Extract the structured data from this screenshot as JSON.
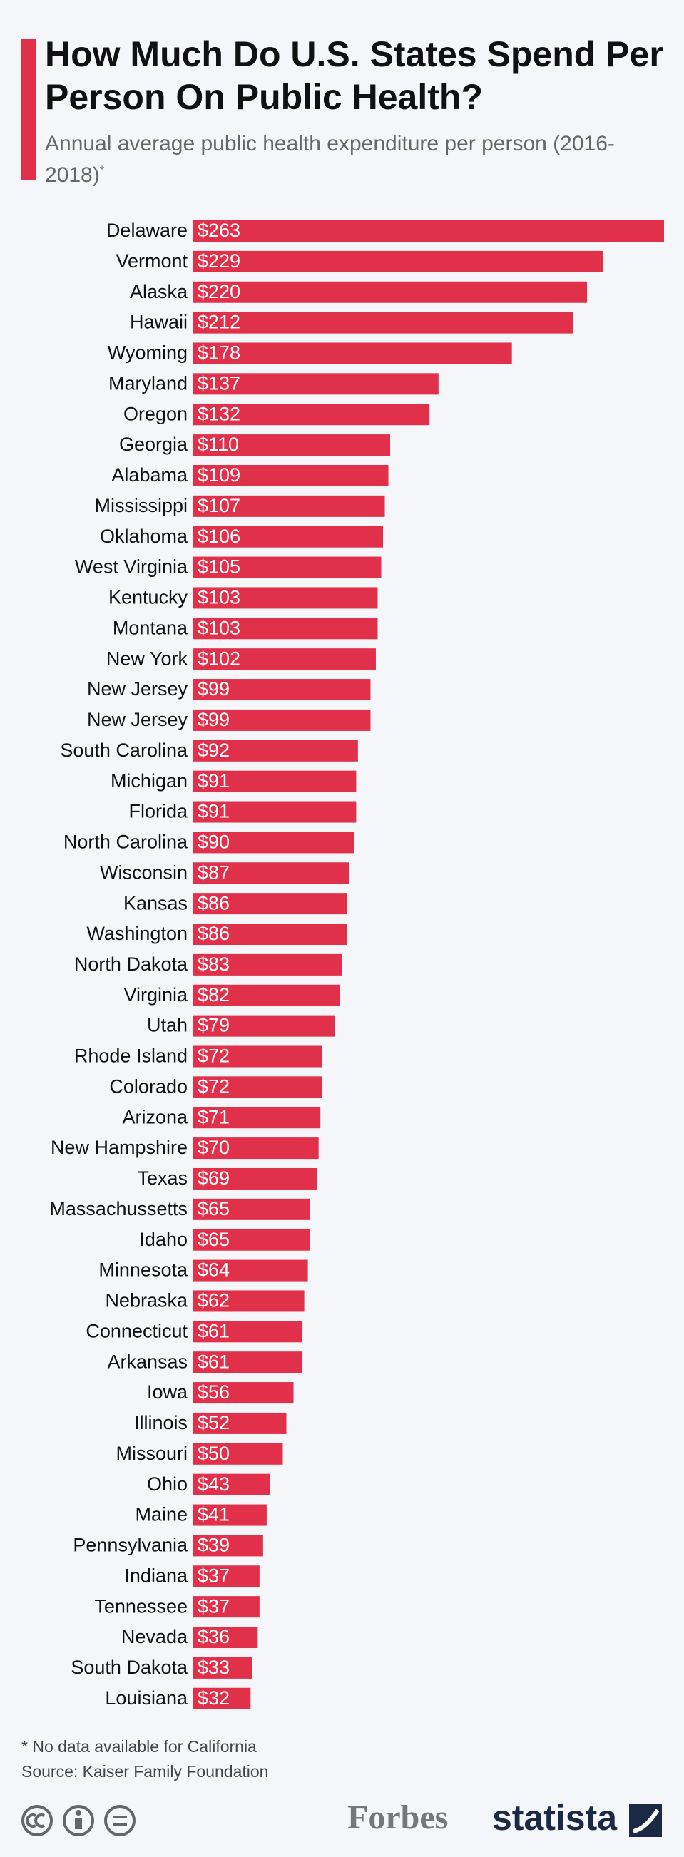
{
  "chart_data": {
    "type": "bar",
    "orientation": "horizontal",
    "title": "How Much Do U.S. States Spend Per Person On Public Health?",
    "subtitle": "Annual average public health expenditure per person (2016-2018)",
    "subtitle_mark": "*",
    "categories": [
      "Delaware",
      "Vermont",
      "Alaska",
      "Hawaii",
      "Wyoming",
      "Maryland",
      "Oregon",
      "Georgia",
      "Alabama",
      "Mississippi",
      "Oklahoma",
      "West Virginia",
      "Kentucky",
      "Montana",
      "New York",
      "New Jersey",
      "New Jersey",
      "South Carolina",
      "Michigan",
      "Florida",
      "North Carolina",
      "Wisconsin",
      "Kansas",
      "Washington",
      "North Dakota",
      "Virginia",
      "Utah",
      "Rhode Island",
      "Colorado",
      "Arizona",
      "New Hampshire",
      "Texas",
      "Massachussetts",
      "Idaho",
      "Minnesota",
      "Nebraska",
      "Connecticut",
      "Arkansas",
      "Iowa",
      "Illinois",
      "Missouri",
      "Ohio",
      "Maine",
      "Pennsylvania",
      "Indiana",
      "Tennessee",
      "Nevada",
      "South Dakota",
      "Louisiana"
    ],
    "values": [
      263,
      229,
      220,
      212,
      178,
      137,
      132,
      110,
      109,
      107,
      106,
      105,
      103,
      103,
      102,
      99,
      99,
      92,
      91,
      91,
      90,
      87,
      86,
      86,
      83,
      82,
      79,
      72,
      72,
      71,
      70,
      69,
      65,
      65,
      64,
      62,
      61,
      61,
      56,
      52,
      50,
      43,
      41,
      39,
      37,
      37,
      36,
      33,
      32
    ],
    "value_labels": [
      "$263",
      "$229",
      "$220",
      "$212",
      "$178",
      "$137",
      "$132",
      "$110",
      "$109",
      "$107",
      "$106",
      "$105",
      "$103",
      "$103",
      "$102",
      "$99",
      "$99",
      "$92",
      "$91",
      "$91",
      "$90",
      "$87",
      "$86",
      "$86",
      "$83",
      "$82",
      "$79",
      "$72",
      "$72",
      "$71",
      "$70",
      "$69",
      "$65",
      "$65",
      "$64",
      "$62",
      "$61",
      "$61",
      "$56",
      "$52",
      "$50",
      "$43",
      "$41",
      "$39",
      "$37",
      "$37",
      "$36",
      "$33",
      "$32"
    ],
    "color": "#e0304a",
    "note": "* No data available for California",
    "source": "Source: Kaiser Family Foundation",
    "logos": [
      "Forbes",
      "statista"
    ]
  }
}
